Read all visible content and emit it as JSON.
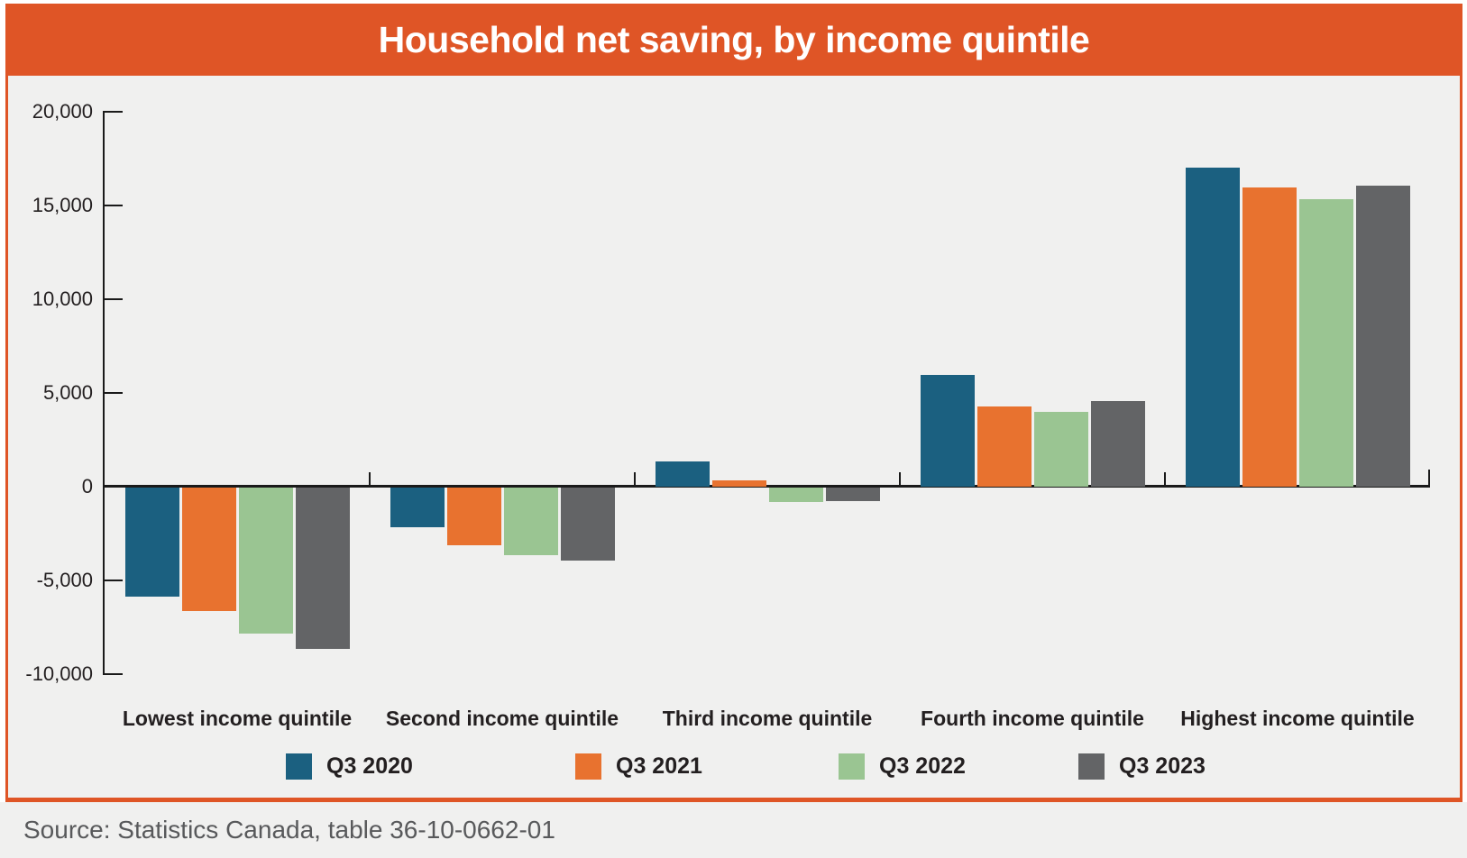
{
  "banner": {
    "background": "#df5526"
  },
  "chart_data": {
    "type": "bar",
    "title": "Household net saving, by income quintile",
    "categories": [
      "Lowest income quintile",
      "Second income quintile",
      "Third income quintile",
      "Fourth income quintile",
      "Highest income quintile"
    ],
    "series": [
      {
        "name": "Q3 2020",
        "color": "#1b6080",
        "values": [
          -5800,
          -2100,
          1350,
          5950,
          17000
        ]
      },
      {
        "name": "Q3 2021",
        "color": "#e8722f",
        "values": [
          -6600,
          -3100,
          350,
          4300,
          15950
        ]
      },
      {
        "name": "Q3 2022",
        "color": "#9ac592",
        "values": [
          -7800,
          -3600,
          -750,
          4000,
          15350
        ]
      },
      {
        "name": "Q3 2023",
        "color": "#636466",
        "values": [
          -8600,
          -3900,
          -700,
          4550,
          16050
        ]
      }
    ],
    "y_axis": {
      "min": -10000,
      "max": 20000,
      "step": 5000,
      "ticks": [
        {
          "value": 20000,
          "label": "20,000"
        },
        {
          "value": 15000,
          "label": "15,000"
        },
        {
          "value": 10000,
          "label": "10,000"
        },
        {
          "value": 5000,
          "label": "5,000"
        },
        {
          "value": 0,
          "label": "0"
        },
        {
          "value": -5000,
          "label": "-5,000"
        },
        {
          "value": -10000,
          "label": "-10,000"
        }
      ]
    },
    "xlabel": "",
    "ylabel": "",
    "grid": false,
    "legend_position": "bottom"
  },
  "footer": {
    "source": "Source: Statistics Canada, table 36-10-0662-01"
  }
}
